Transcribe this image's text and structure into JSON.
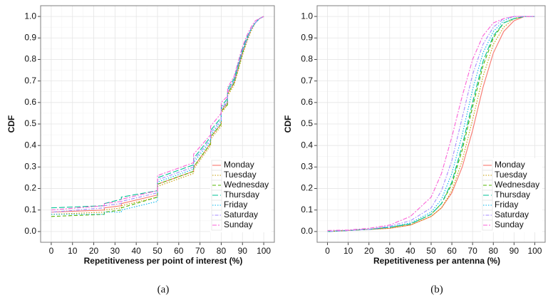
{
  "chart_data": [
    {
      "type": "line",
      "step": true,
      "caption": "(a)",
      "x_label": "Repetitiveness per point of interest (%)",
      "y_label": "CDF",
      "x": [
        0,
        25,
        25,
        33,
        33,
        50,
        50,
        67,
        67,
        75,
        75,
        80,
        80,
        83,
        83,
        86,
        88,
        90,
        92,
        94,
        96,
        98,
        100
      ],
      "xlim": [
        -5,
        105
      ],
      "ylim": [
        -0.05,
        1.05
      ],
      "xticks": [
        0,
        10,
        20,
        30,
        40,
        50,
        60,
        70,
        80,
        90,
        100
      ],
      "yticks": [
        {
          "value": 0,
          "label": "0.0"
        },
        0.1,
        0.2,
        0.3,
        0.4,
        0.5,
        0.6,
        0.7,
        0.8,
        0.9,
        {
          "value": 1,
          "label": "1.0"
        }
      ],
      "grid": true,
      "legend": "bottom-right",
      "series": [
        {
          "name": "Monday",
          "color": "#F8766D",
          "dash": "solid",
          "values": [
            0.09,
            0.1,
            0.11,
            0.12,
            0.13,
            0.17,
            0.22,
            0.28,
            0.3,
            0.41,
            0.44,
            0.5,
            0.56,
            0.6,
            0.64,
            0.69,
            0.76,
            0.83,
            0.89,
            0.94,
            0.97,
            0.99,
            1.0
          ]
        },
        {
          "name": "Tuesday",
          "color": "#C49A00",
          "dash": "dotted",
          "values": [
            0.08,
            0.09,
            0.1,
            0.11,
            0.12,
            0.16,
            0.21,
            0.27,
            0.29,
            0.4,
            0.43,
            0.49,
            0.55,
            0.59,
            0.63,
            0.68,
            0.75,
            0.82,
            0.88,
            0.93,
            0.97,
            0.99,
            1.0
          ]
        },
        {
          "name": "Wednesday",
          "color": "#53B400",
          "dash": "dashed",
          "values": [
            0.07,
            0.08,
            0.09,
            0.1,
            0.11,
            0.16,
            0.22,
            0.28,
            0.3,
            0.41,
            0.44,
            0.5,
            0.56,
            0.59,
            0.64,
            0.69,
            0.76,
            0.83,
            0.89,
            0.94,
            0.97,
            0.99,
            1.0
          ]
        },
        {
          "name": "Thursday",
          "color": "#00C094",
          "dash": "longdash",
          "values": [
            0.11,
            0.12,
            0.13,
            0.15,
            0.16,
            0.19,
            0.25,
            0.31,
            0.34,
            0.44,
            0.47,
            0.53,
            0.58,
            0.62,
            0.66,
            0.71,
            0.78,
            0.85,
            0.9,
            0.94,
            0.97,
            0.99,
            1.0
          ]
        },
        {
          "name": "Friday",
          "color": "#00B6EB",
          "dash": "dotted",
          "values": [
            0.08,
            0.08,
            0.09,
            0.09,
            0.1,
            0.14,
            0.23,
            0.29,
            0.32,
            0.42,
            0.45,
            0.51,
            0.57,
            0.6,
            0.65,
            0.7,
            0.77,
            0.84,
            0.89,
            0.94,
            0.97,
            0.99,
            1.0
          ]
        },
        {
          "name": "Saturday",
          "color": "#A58AFF",
          "dash": "dotdash",
          "values": [
            0.09,
            0.11,
            0.12,
            0.13,
            0.14,
            0.18,
            0.24,
            0.3,
            0.33,
            0.43,
            0.46,
            0.52,
            0.57,
            0.61,
            0.65,
            0.7,
            0.77,
            0.84,
            0.89,
            0.94,
            0.97,
            0.99,
            1.0
          ]
        },
        {
          "name": "Sunday",
          "color": "#FB61D7",
          "dash": "twodash",
          "values": [
            0.1,
            0.12,
            0.13,
            0.14,
            0.15,
            0.19,
            0.26,
            0.32,
            0.36,
            0.45,
            0.49,
            0.55,
            0.6,
            0.63,
            0.67,
            0.72,
            0.79,
            0.86,
            0.91,
            0.95,
            0.98,
            0.99,
            1.0
          ]
        }
      ]
    },
    {
      "type": "line",
      "step": false,
      "caption": "(b)",
      "x_label": "Repetitiveness per antenna (%)",
      "y_label": "CDF",
      "x": [
        0,
        10,
        20,
        30,
        40,
        50,
        55,
        60,
        65,
        70,
        75,
        80,
        85,
        90,
        95,
        100
      ],
      "xlim": [
        -5,
        105
      ],
      "ylim": [
        -0.05,
        1.05
      ],
      "xticks": [
        0,
        10,
        20,
        30,
        40,
        50,
        60,
        70,
        80,
        90,
        100
      ],
      "yticks": [
        {
          "value": 0,
          "label": "0.0"
        },
        0.1,
        0.2,
        0.3,
        0.4,
        0.5,
        0.6,
        0.7,
        0.8,
        0.9,
        {
          "value": 1,
          "label": "1.0"
        }
      ],
      "grid": true,
      "legend": "bottom-right",
      "series": [
        {
          "name": "Monday",
          "color": "#F8766D",
          "dash": "solid",
          "values": [
            0,
            0.005,
            0.01,
            0.015,
            0.03,
            0.07,
            0.11,
            0.18,
            0.3,
            0.47,
            0.67,
            0.83,
            0.93,
            0.98,
            1.0,
            1.0
          ]
        },
        {
          "name": "Tuesday",
          "color": "#C49A00",
          "dash": "dotted",
          "values": [
            0,
            0.005,
            0.01,
            0.015,
            0.03,
            0.07,
            0.11,
            0.19,
            0.33,
            0.52,
            0.72,
            0.87,
            0.95,
            0.99,
            1.0,
            1.0
          ]
        },
        {
          "name": "Wednesday",
          "color": "#53B400",
          "dash": "dashed",
          "values": [
            0,
            0.005,
            0.01,
            0.02,
            0.035,
            0.08,
            0.13,
            0.22,
            0.38,
            0.58,
            0.77,
            0.9,
            0.97,
            0.99,
            1.0,
            1.0
          ]
        },
        {
          "name": "Thursday",
          "color": "#00C094",
          "dash": "longdash",
          "values": [
            0,
            0.005,
            0.01,
            0.02,
            0.035,
            0.08,
            0.13,
            0.23,
            0.4,
            0.6,
            0.79,
            0.91,
            0.97,
            0.99,
            1.0,
            1.0
          ]
        },
        {
          "name": "Friday",
          "color": "#00B6EB",
          "dash": "dotted",
          "values": [
            0,
            0.005,
            0.01,
            0.02,
            0.04,
            0.09,
            0.15,
            0.27,
            0.45,
            0.66,
            0.83,
            0.93,
            0.98,
            1.0,
            1.0,
            1.0
          ]
        },
        {
          "name": "Saturday",
          "color": "#A58AFF",
          "dash": "dotdash",
          "values": [
            0,
            0.005,
            0.01,
            0.025,
            0.05,
            0.11,
            0.19,
            0.33,
            0.53,
            0.73,
            0.87,
            0.95,
            0.99,
            1.0,
            1.0,
            1.0
          ]
        },
        {
          "name": "Sunday",
          "color": "#FB61D7",
          "dash": "twodash",
          "values": [
            0.005,
            0.007,
            0.015,
            0.03,
            0.07,
            0.16,
            0.27,
            0.44,
            0.63,
            0.8,
            0.91,
            0.97,
            0.99,
            1.0,
            1.0,
            1.0
          ]
        }
      ]
    }
  ]
}
